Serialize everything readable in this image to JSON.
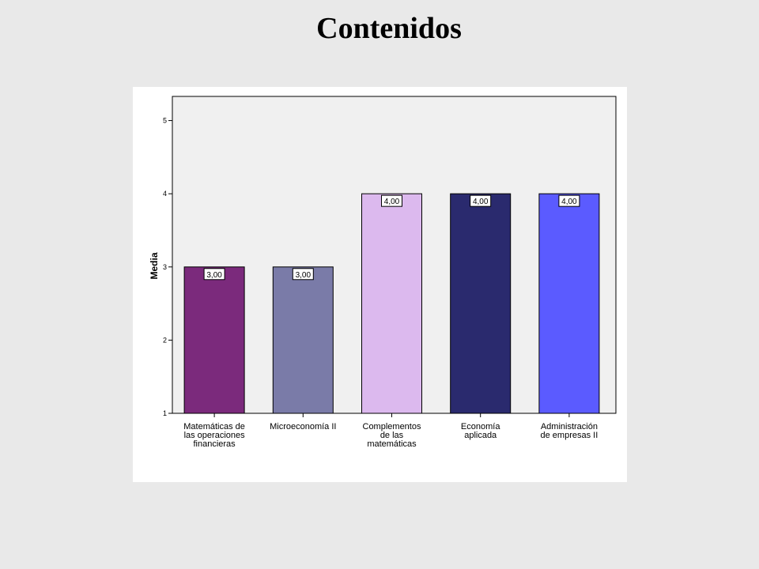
{
  "slide": {
    "title": "Contenidos"
  },
  "chart_data": {
    "type": "bar",
    "ylabel": "Media",
    "xlabel": "",
    "ylim": [
      1,
      5
    ],
    "yticks": [
      "1",
      "2",
      "3",
      "4",
      "5"
    ],
    "grid": false,
    "categories": [
      [
        "Matemáticas de",
        "las operaciones",
        "financieras"
      ],
      [
        "Microeconomía II"
      ],
      [
        "Complementos",
        "de las",
        "matemáticas"
      ],
      [
        "Economía",
        "aplicada"
      ],
      [
        "Administración",
        "de empresas II"
      ]
    ],
    "values": [
      3,
      3,
      4,
      4,
      4
    ],
    "value_labels": [
      "3,00",
      "3,00",
      "4,00",
      "4,00",
      "4,00"
    ],
    "colors": [
      "#7b2a7c",
      "#7a7ba8",
      "#dcb9ee",
      "#2a2a6e",
      "#5b5bff"
    ],
    "plot_background": "#f0f0f0"
  }
}
